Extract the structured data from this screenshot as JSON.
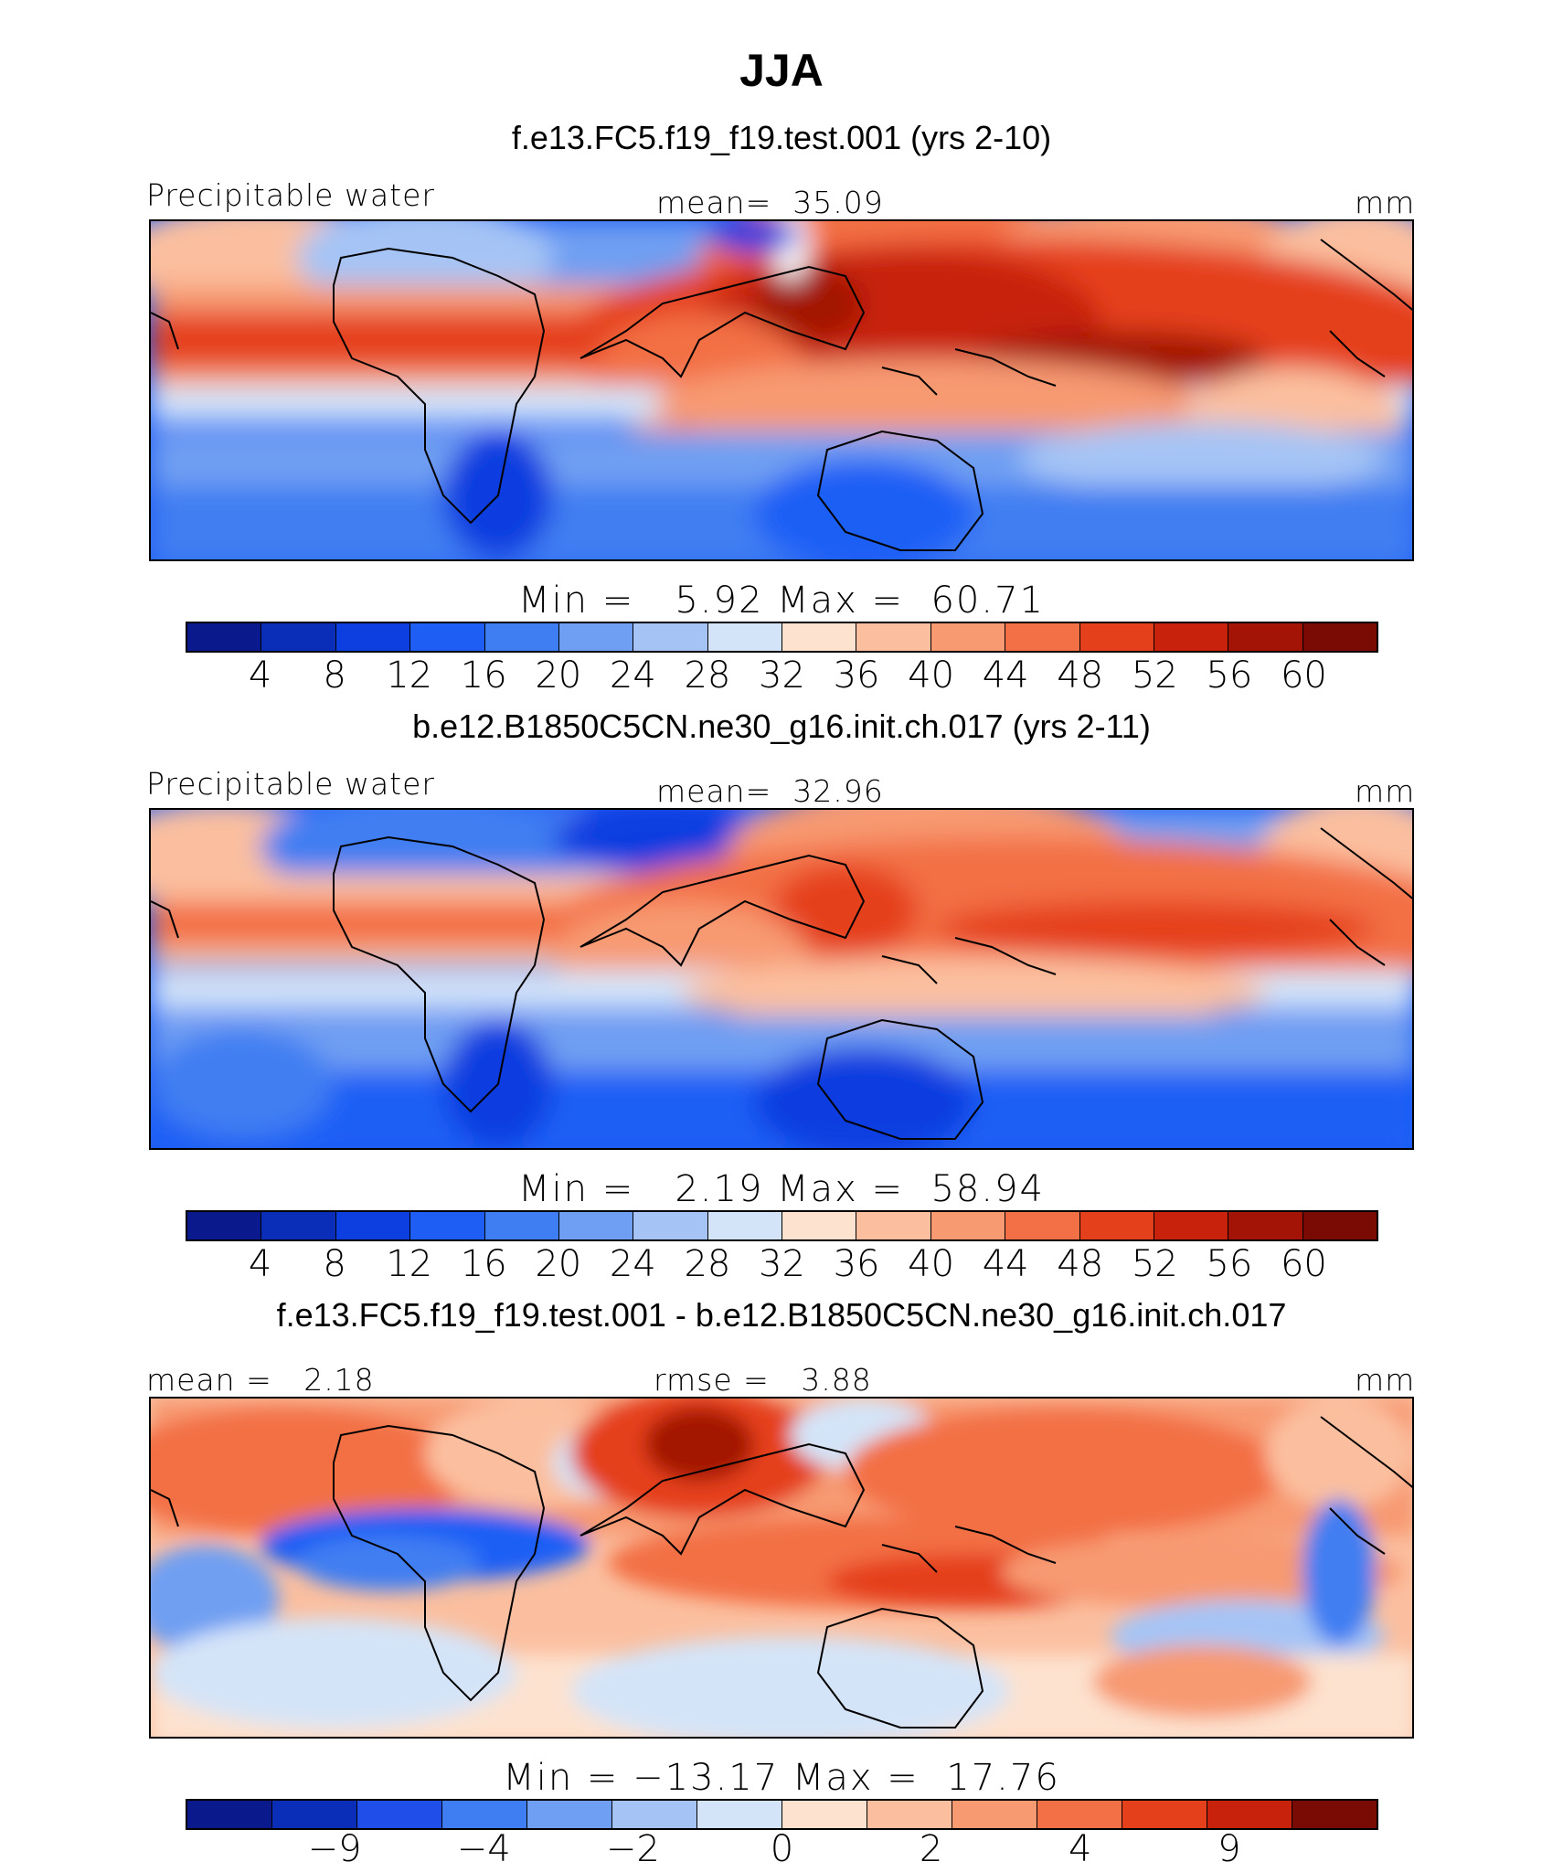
{
  "title": "JJA",
  "panels": [
    {
      "case_title": "f.e13.FC5.f19_f19.test.001 (yrs 2-10)",
      "left_label": "Precipitable water",
      "center_label": "mean=  35.09",
      "units": "mm",
      "minmax": "Min =   5.92 Max =  60.71",
      "ticks": [
        "4",
        "8",
        "12",
        "16",
        "20",
        "24",
        "28",
        "32",
        "36",
        "40",
        "44",
        "48",
        "52",
        "56",
        "60"
      ]
    },
    {
      "case_title": "b.e12.B1850C5CN.ne30_g16.init.ch.017 (yrs 2-11)",
      "left_label": "Precipitable water",
      "center_label": "mean=  32.96",
      "units": "mm",
      "minmax": "Min =   2.19 Max =  58.94",
      "ticks": [
        "4",
        "8",
        "12",
        "16",
        "20",
        "24",
        "28",
        "32",
        "36",
        "40",
        "44",
        "48",
        "52",
        "56",
        "60"
      ]
    },
    {
      "case_title": "f.e13.FC5.f19_f19.test.001 - b.e12.B1850C5CN.ne30_g16.init.ch.017",
      "left_label": "mean =   2.18",
      "center_label": "rmse =   3.88",
      "units": "mm",
      "minmax": "Min = −13.17 Max =  17.76",
      "ticks": [
        "−9",
        "−4",
        "−2",
        "0",
        "2",
        "4",
        "9"
      ]
    }
  ],
  "colors": [
    "#0a1a8c",
    "#0a2eb8",
    "#0d3ee0",
    "#1f5ef5",
    "#3f7ef2",
    "#6f9ff2",
    "#a5c4f5",
    "#d4e4f8",
    "#fde2cf",
    "#fbbf9f",
    "#f79a72",
    "#f36f45",
    "#e5401c",
    "#c8220c",
    "#a31406",
    "#7a0a04"
  ],
  "diff_colors": [
    "#0a1a8c",
    "#0a2eb8",
    "#1f4fe8",
    "#3f7ef2",
    "#6f9ff2",
    "#a5c4f5",
    "#d4e4f8",
    "#fde2cf",
    "#fbbf9f",
    "#f79a72",
    "#f36f45",
    "#e5401c",
    "#c8220c",
    "#7a0a04"
  ]
}
